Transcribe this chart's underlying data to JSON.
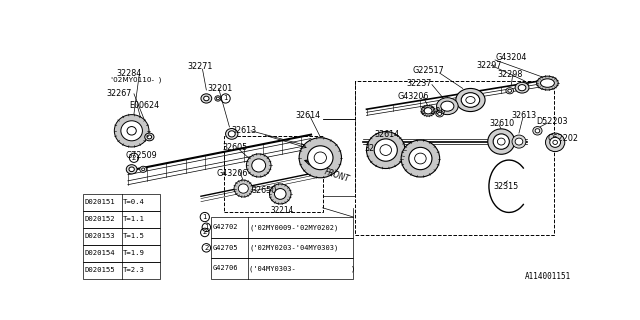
{
  "bg_color": "#ffffff",
  "line_color": "#000000",
  "text_color": "#000000",
  "diagram_id": "A114001151",
  "table1_rows": [
    [
      "D020151",
      "T=0.4"
    ],
    [
      "D020152",
      "T=1.1"
    ],
    [
      "D020153",
      "T=1.5"
    ],
    [
      "D020154",
      "T=1.9"
    ],
    [
      "D020155",
      "T=2.3"
    ]
  ],
  "table2_header": "32214",
  "table2_rows": [
    [
      "G42702",
      "('02MY0009-'02MY0202)"
    ],
    [
      "G42705",
      "('02MY0203-'04MY0303)"
    ],
    [
      "G42706",
      "('04MY0303-             )"
    ]
  ],
  "t1x": 0.002,
  "t1y": 0.04,
  "t1w": 0.155,
  "t1h": 0.2,
  "t2x": 0.255,
  "t2y": 0.02,
  "t2w": 0.29,
  "t2h": 0.13,
  "t2col1w": 0.075
}
